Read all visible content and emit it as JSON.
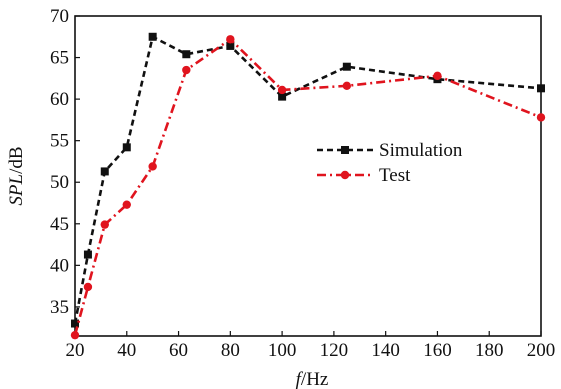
{
  "chart_data": {
    "type": "line",
    "title": "",
    "xlabel": "f/Hz",
    "ylabel": "SPL/dB",
    "xlim": [
      20,
      200
    ],
    "ylim": [
      31.5,
      70
    ],
    "xticks": [
      20,
      40,
      60,
      80,
      100,
      120,
      140,
      160,
      180,
      200
    ],
    "yticks": [
      35,
      40,
      45,
      50,
      55,
      60,
      65,
      70
    ],
    "grid": false,
    "legend_position": "center-right",
    "series": [
      {
        "name": "Simulation",
        "color": "#111111",
        "line_style": "dashed",
        "marker": "square",
        "x": [
          20,
          25,
          31.5,
          40,
          50,
          63,
          80,
          100,
          125,
          160,
          200
        ],
        "y": [
          33,
          41.3,
          51.3,
          54.2,
          67.5,
          65.4,
          66.4,
          60.3,
          63.9,
          62.4,
          61.3
        ]
      },
      {
        "name": "Test",
        "color": "#e0141e",
        "line_style": "dash-dot",
        "marker": "circle",
        "x": [
          20,
          25,
          31.5,
          40,
          50,
          63,
          80,
          100,
          125,
          160,
          200
        ],
        "y": [
          31.6,
          37.4,
          44.9,
          47.3,
          51.9,
          63.5,
          67.2,
          61.1,
          61.6,
          62.8,
          57.8
        ]
      }
    ]
  }
}
